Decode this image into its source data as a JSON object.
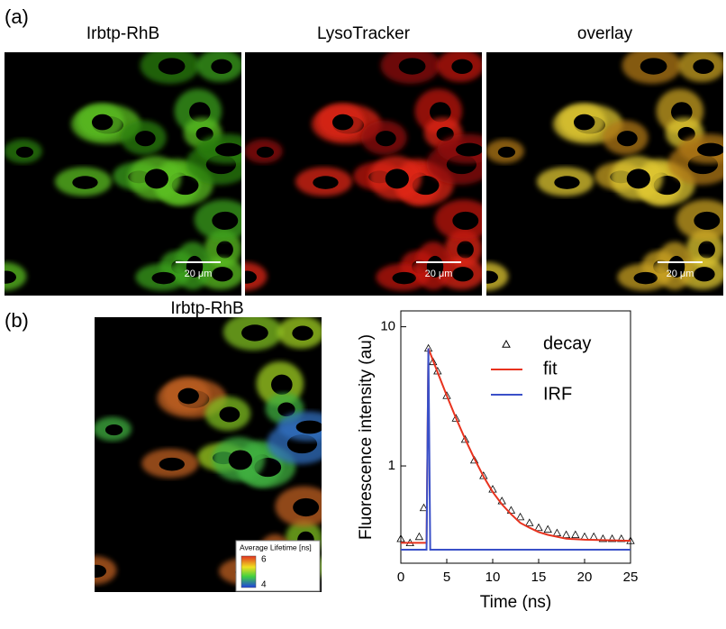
{
  "panels": {
    "a": "(a)",
    "b": "(b)"
  },
  "images": [
    {
      "title": "Irbtp-RhB",
      "scale_bar": "20 μm"
    },
    {
      "title": "LysoTracker",
      "scale_bar": "20 μm"
    },
    {
      "title": "overlay",
      "scale_bar": "20 μm"
    }
  ],
  "lifetime_image": {
    "title": "Irbtp-RhB",
    "legend_title": "Average Lifetime [ns]",
    "legend_max": 6,
    "legend_min": 4
  },
  "chart_data": {
    "type": "line",
    "x_label": "Time (ns)",
    "y_label": "Fluorescence intensity (au)",
    "xlim": [
      0,
      25
    ],
    "xticks": [
      0,
      5,
      10,
      15,
      20,
      25
    ],
    "ylim": [
      0.2,
      13
    ],
    "yticks": [
      1,
      10
    ],
    "log_y": true,
    "legend": "upper right",
    "series": [
      {
        "name": "decay",
        "color": "#000000",
        "marker": "triangle",
        "x": [
          0,
          1,
          2,
          2.5,
          3,
          3.5,
          4,
          5,
          6,
          7,
          8,
          9,
          10,
          11,
          12,
          13,
          14,
          15,
          16,
          17,
          18,
          19,
          20,
          21,
          22,
          23,
          24,
          25
        ],
        "values": [
          0.3,
          0.28,
          0.31,
          0.5,
          7.0,
          5.6,
          4.8,
          3.2,
          2.2,
          1.55,
          1.1,
          0.85,
          0.68,
          0.56,
          0.48,
          0.43,
          0.39,
          0.36,
          0.35,
          0.33,
          0.32,
          0.32,
          0.31,
          0.31,
          0.3,
          0.3,
          0.3,
          0.29
        ]
      },
      {
        "name": "fit",
        "color": "#e8321e",
        "x": [
          0,
          2.8,
          3,
          4,
          5,
          6,
          7,
          8,
          9,
          10,
          11,
          12,
          13,
          14,
          15,
          16,
          18,
          20,
          25
        ],
        "values": [
          0.28,
          0.28,
          6.99,
          4.71,
          3.2,
          2.21,
          1.56,
          1.13,
          0.84,
          0.65,
          0.53,
          0.45,
          0.39,
          0.36,
          0.335,
          0.32,
          0.3,
          0.295,
          0.29
        ]
      },
      {
        "name": "IRF",
        "color": "#3a50c8",
        "x": [
          0,
          2.8,
          3,
          3.2,
          25
        ],
        "values": [
          0.25,
          0.25,
          7,
          0.25,
          0.25
        ]
      }
    ]
  }
}
